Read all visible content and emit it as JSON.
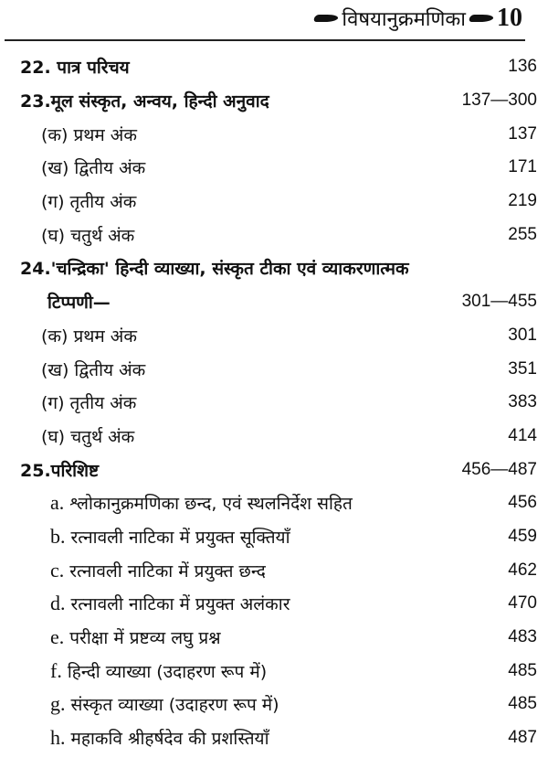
{
  "header": {
    "title": "विषयानुक्रमणिका",
    "page_number": "10"
  },
  "entries": [
    {
      "type": "main",
      "label": "22. पात्र परिचय",
      "page": "136"
    },
    {
      "type": "main",
      "label": "23.मूल संस्कृत, अन्वय, हिन्दी अनुवाद",
      "page": "137—300"
    },
    {
      "type": "sub",
      "label": "(क) प्रथम अंक",
      "page": "137"
    },
    {
      "type": "sub",
      "label": "(ख) द्वितीय अंक",
      "page": "171"
    },
    {
      "type": "sub",
      "label": "(ग) तृतीय अंक",
      "page": "219"
    },
    {
      "type": "sub",
      "label": "(घ) चतुर्थ अंक",
      "page": "255"
    },
    {
      "type": "main",
      "label": "24.'चन्द्रिका' हिन्दी व्याख्या, संस्कृत टीका एवं व्याकरणात्मक",
      "page": ""
    },
    {
      "type": "cont",
      "label": "टिप्पणी—",
      "page": "301—455"
    },
    {
      "type": "sub",
      "label": "(क) प्रथम अंक",
      "page": "301"
    },
    {
      "type": "sub",
      "label": "(ख) द्वितीय अंक",
      "page": "351"
    },
    {
      "type": "sub",
      "label": "(ग) तृतीय अंक",
      "page": "383"
    },
    {
      "type": "sub",
      "label": "(घ) चतुर्थ अंक",
      "page": "414"
    },
    {
      "type": "main",
      "label": "25.परिशिष्ट",
      "page": "456—487"
    },
    {
      "type": "alpha",
      "letter": "a.",
      "label": "श्लोकानुक्रमणिका छन्द, एवं स्थलनिर्देश सहित",
      "page": "456"
    },
    {
      "type": "alpha",
      "letter": "b.",
      "label": "रत्नावली नाटिका में प्रयुक्त सूक्तियाँ",
      "page": "459"
    },
    {
      "type": "alpha",
      "letter": "c.",
      "label": "रत्नावली नाटिका में प्रयुक्त छन्द",
      "page": "462"
    },
    {
      "type": "alpha",
      "letter": "d.",
      "label": "रत्नावली नाटिका में प्रयुक्त अलंकार",
      "page": "470"
    },
    {
      "type": "alpha",
      "letter": "e.",
      "label": "परीक्षा में प्रष्टव्य लघु प्रश्न",
      "page": "483"
    },
    {
      "type": "alpha",
      "letter": "f.",
      "label": "हिन्दी व्याख्या (उदाहरण रूप में)",
      "page": "485"
    },
    {
      "type": "alpha",
      "letter": "g.",
      "label": "संस्कृत व्याख्या (उदाहरण रूप में)",
      "page": "485"
    },
    {
      "type": "alpha",
      "letter": "h.",
      "label": "महाकवि श्रीहर्षदेव की प्रशस्तियाँ",
      "page": "487"
    }
  ]
}
